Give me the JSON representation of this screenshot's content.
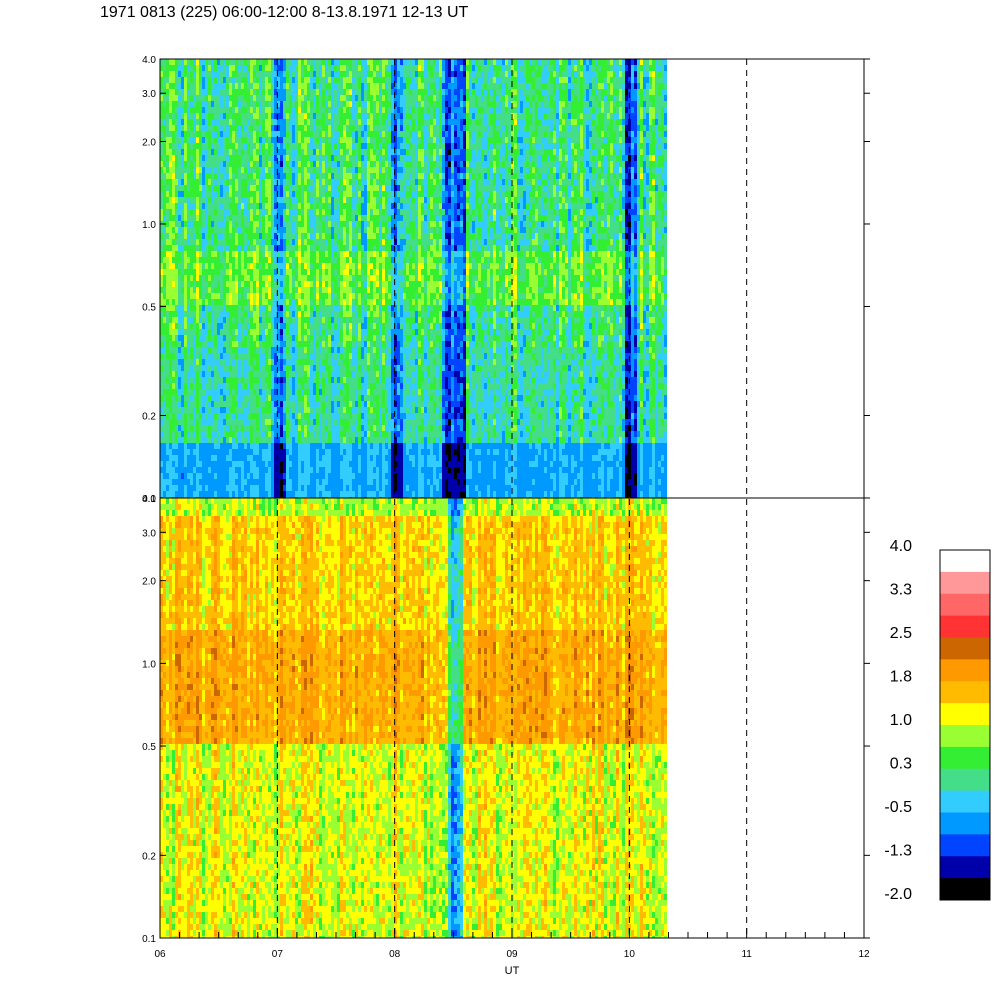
{
  "title": "1971 0813 (225) 06:00-12:00 8-13.8.1971  12-13 UT",
  "chart_data": {
    "type": "heatmap",
    "xlabel": "UT",
    "x_ticks": [
      "06",
      "07",
      "08",
      "09",
      "10",
      "11",
      "12"
    ],
    "x_range": [
      6,
      12
    ],
    "data_end_ut": 10.3,
    "dashed_lines_ut": [
      7,
      8,
      9,
      10,
      11
    ],
    "y_scale": "log",
    "y_range": [
      0.1,
      4.0
    ],
    "y_ticks": [
      {
        "value": 0.1,
        "label": "0.1"
      },
      {
        "value": 0.2,
        "label": "0.2"
      },
      {
        "value": 0.5,
        "label": "0.5"
      },
      {
        "value": 1.0,
        "label": "1.0"
      },
      {
        "value": 2.0,
        "label": "2.0"
      },
      {
        "value": 3.0,
        "label": "3.0"
      },
      {
        "value": 4.0,
        "label": "4.0"
      }
    ],
    "panels": [
      {
        "name": "top",
        "dominant_level": 0.2,
        "low_freq_level": -0.6,
        "dips": [
          7.0,
          8.0,
          8.45,
          8.55,
          10.0
        ]
      },
      {
        "name": "bottom",
        "dominant_level": 1.2,
        "band_low": 0.5,
        "band_high": 1.3,
        "band_level": 1.9
      }
    ],
    "colorbar": {
      "labels": [
        "4.0",
        "3.3",
        "2.5",
        "1.8",
        "1.0",
        "0.3",
        "-0.5",
        "-1.3",
        "-2.0"
      ],
      "colors_top_to_bottom": [
        "#ffffff",
        "#ff9999",
        "#ff6666",
        "#ff3333",
        "#cc6600",
        "#ff9900",
        "#ffbb00",
        "#ffff00",
        "#99ff33",
        "#33ee33",
        "#44dd88",
        "#33ccff",
        "#0099ff",
        "#0044ff",
        "#0000aa",
        "#000000"
      ]
    }
  }
}
